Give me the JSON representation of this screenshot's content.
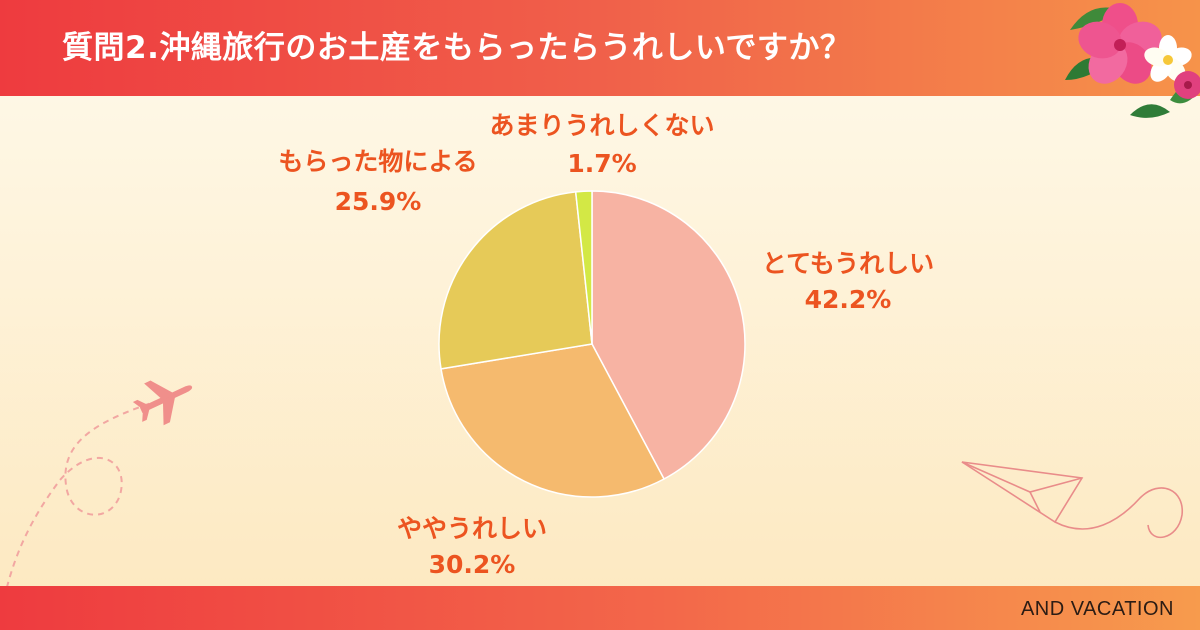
{
  "header": {
    "title": "質問2.沖縄旅行のお土産をもらったらうれしいですか？"
  },
  "footer": {
    "brand": "AND VACATION"
  },
  "colors": {
    "header": "#ee3b3f",
    "label": "#ec5420"
  },
  "icons": [
    "airplane-icon",
    "paper-plane-icon",
    "hibiscus-flower-icon"
  ],
  "chart_data": {
    "type": "pie",
    "title": "",
    "legend": "none",
    "slices": [
      {
        "label": "とてもうれしい",
        "value": 42.2,
        "display": "42.2%",
        "color": "#f7b3a3"
      },
      {
        "label": "ややうれしい",
        "value": 30.2,
        "display": "30.2%",
        "color": "#f5ba6e"
      },
      {
        "label": "もらった物による",
        "value": 25.9,
        "display": "25.9%",
        "color": "#e6ca58"
      },
      {
        "label": "あまりうれしくない",
        "value": 1.7,
        "display": "1.7%",
        "color": "#d3e845"
      }
    ]
  }
}
